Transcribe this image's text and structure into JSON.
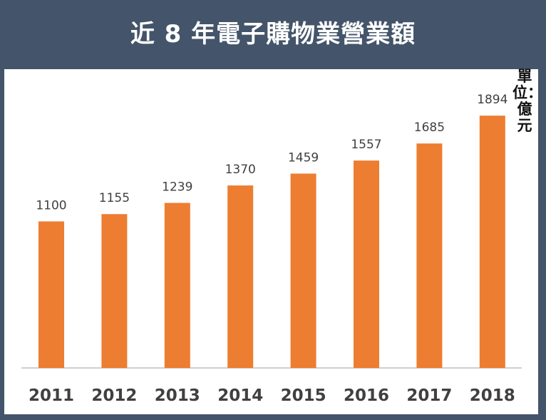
{
  "header": {
    "title": "近 8 年電子購物業營業額"
  },
  "unit_label": "單位：億元",
  "colors": {
    "bar": "#ed7d31",
    "header_bg": "#44546a",
    "panel_bg": "#ffffff"
  },
  "chart_data": {
    "type": "bar",
    "title": "近 8 年電子購物業營業額",
    "categories": [
      "2011",
      "2012",
      "2013",
      "2014",
      "2015",
      "2016",
      "2017",
      "2018"
    ],
    "values": [
      1100,
      1155,
      1239,
      1370,
      1459,
      1557,
      1685,
      1894
    ],
    "ylabel": "單位：億元",
    "ylim": [
      0,
      2000
    ],
    "grid": false,
    "legend": "none"
  }
}
